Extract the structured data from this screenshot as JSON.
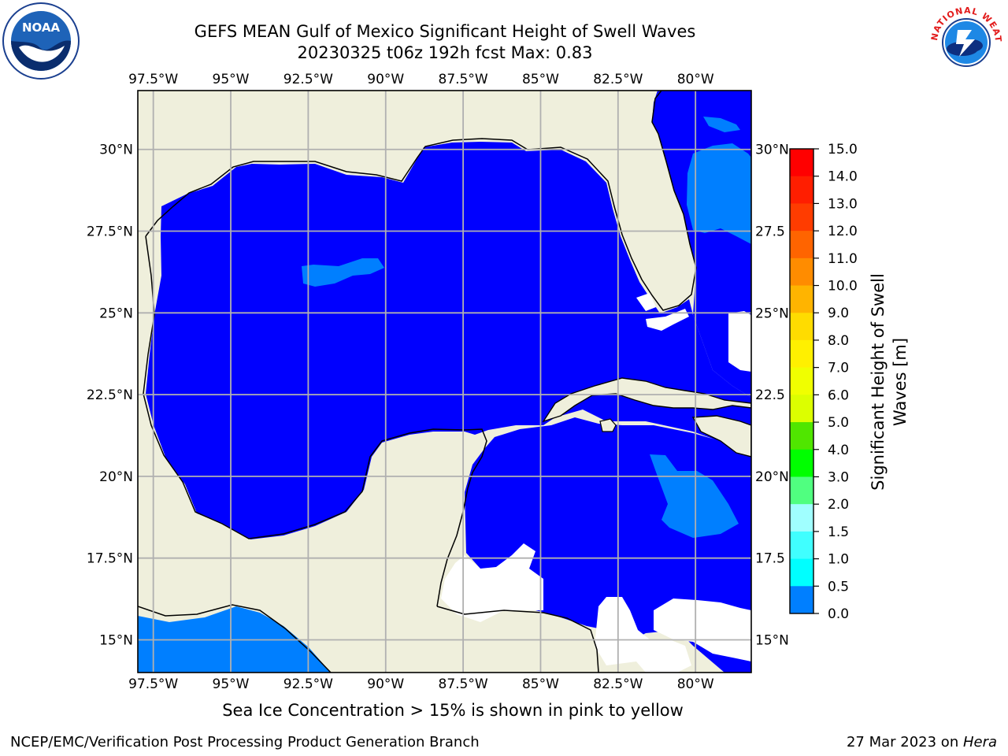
{
  "header": {
    "title_line1": "GEFS MEAN Gulf of Mexico Significant Height of Swell Waves",
    "title_line2": "20230325 t06z 192h fcst   Max: 0.83"
  },
  "logos": {
    "left": "noaa-logo",
    "right": "nws-logo",
    "noaa_text": "NOAA",
    "nws_ring_text": "NATIONAL WEATHER SERVICE"
  },
  "map": {
    "lon_range": [
      -98.0,
      -78.2
    ],
    "lat_range": [
      14.0,
      31.8
    ],
    "lon_ticks": [
      "97.5°W",
      "95°W",
      "92.5°W",
      "90°W",
      "87.5°W",
      "85°W",
      "82.5°W",
      "80°W"
    ],
    "lon_tick_values": [
      -97.5,
      -95,
      -92.5,
      -90,
      -87.5,
      -85,
      -82.5,
      -80
    ],
    "lat_ticks_left": [
      "30°N",
      "27.5°N",
      "25°N",
      "22.5°N",
      "20°N",
      "17.5°N",
      "15°N"
    ],
    "lat_ticks_right": [
      "30°N",
      "27.5",
      "25°N",
      "22.5",
      "20°N",
      "17.5",
      "15°N"
    ],
    "lat_tick_values": [
      30,
      27.5,
      25,
      22.5,
      20,
      17.5,
      15
    ],
    "grid": true,
    "colors": {
      "land": "#efefdc",
      "swell_0_0_5": "#0000ff",
      "swell_0_5_1_0": "#007fff",
      "no_data": "#ffffff",
      "coast": "#000000",
      "grid": "#b0b0b0"
    }
  },
  "colorbar": {
    "label_line1": "Significant Height of Swell",
    "label_line2": "Waves [m]",
    "ticks": [
      "15.0",
      "14.0",
      "13.0",
      "12.0",
      "11.0",
      "10.0",
      "9.0",
      "8.0",
      "7.0",
      "6.0",
      "5.0",
      "4.0",
      "3.0",
      "2.0",
      "1.5",
      "1.0",
      "0.5",
      "0.0"
    ],
    "colors_top_to_bottom": [
      "#ff0000",
      "#ff1e00",
      "#ff3c00",
      "#ff6400",
      "#ff8c00",
      "#ffb400",
      "#ffdc00",
      "#fff000",
      "#f0ff00",
      "#dcff00",
      "#b4ff00",
      "#50e600",
      "#00ff00",
      "#50ff80",
      "#a0ffff",
      "#40ffff",
      "#00ffff",
      "#007fff",
      "#0000ff"
    ]
  },
  "footer": {
    "note": "Sea Ice Concentration > 15% is shown in pink to yellow",
    "left": "NCEP/EMC/Verification Post Processing Product Generation Branch",
    "right_date": "27 Mar 2023 on ",
    "right_system": "Hera"
  }
}
